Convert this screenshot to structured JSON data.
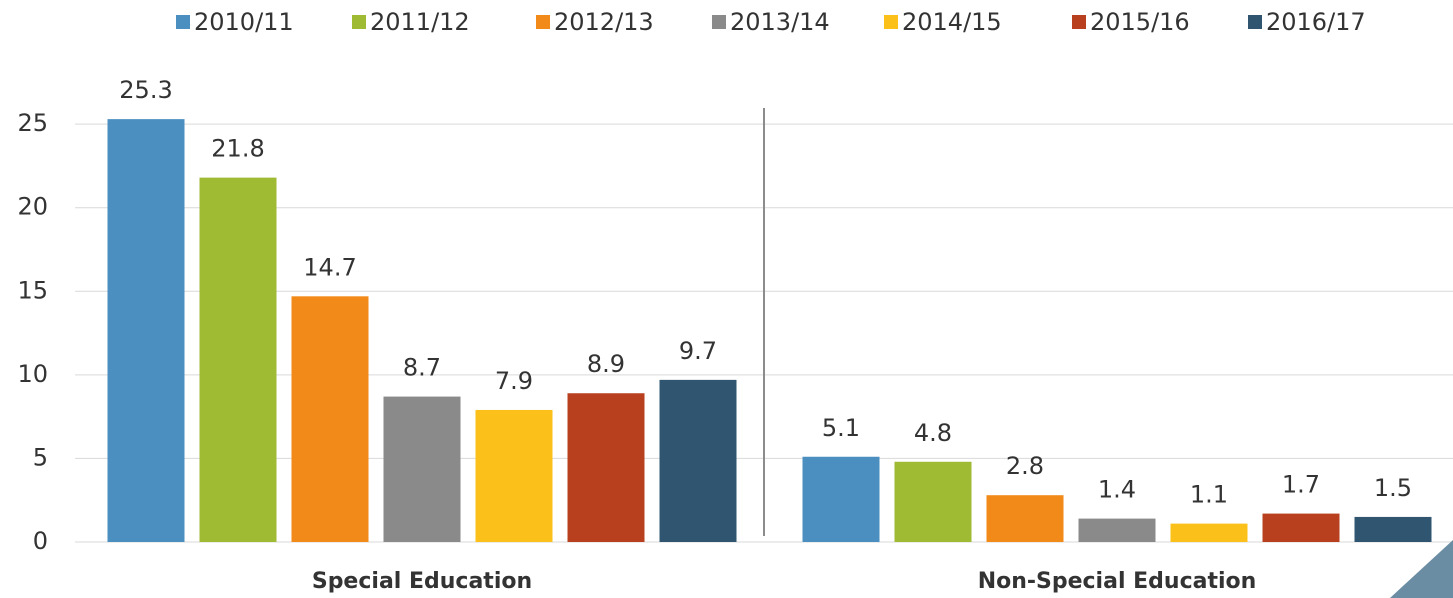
{
  "chart_data": {
    "type": "bar",
    "categories": [
      "Special Education",
      "Non-Special Education"
    ],
    "series": [
      {
        "name": "2010/11",
        "color": "#4a8fc0",
        "values": [
          25.3,
          5.1
        ]
      },
      {
        "name": "2011/12",
        "color": "#9fba33",
        "values": [
          21.8,
          4.8
        ]
      },
      {
        "name": "2012/13",
        "color": "#f28a1a",
        "values": [
          14.7,
          2.8
        ]
      },
      {
        "name": "2013/14",
        "color": "#8a8a8a",
        "values": [
          8.7,
          1.4
        ]
      },
      {
        "name": "2014/15",
        "color": "#fbc11a",
        "values": [
          7.9,
          1.1
        ]
      },
      {
        "name": "2015/16",
        "color": "#b8401e",
        "values": [
          8.9,
          1.7
        ]
      },
      {
        "name": "2016/17",
        "color": "#2f5571",
        "values": [
          9.7,
          1.5
        ]
      }
    ],
    "ylim": [
      0,
      28
    ],
    "yticks": [
      0,
      5,
      10,
      15,
      20,
      25
    ],
    "grid": true,
    "legend": "top"
  }
}
